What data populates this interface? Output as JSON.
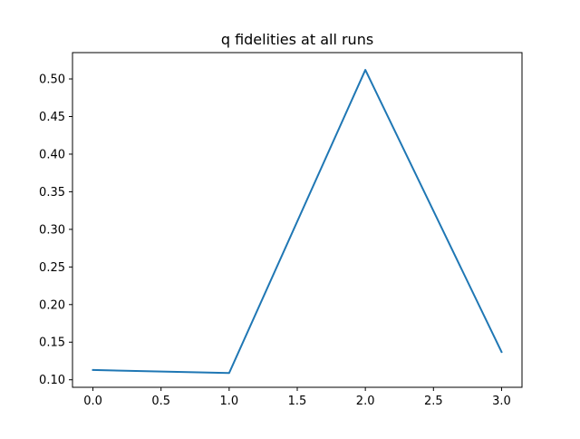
{
  "chart_data": {
    "type": "line",
    "title": "q fidelities at all runs",
    "xlabel": "",
    "ylabel": "",
    "x": [
      0,
      1,
      2,
      3
    ],
    "series": [
      {
        "values": [
          0.113,
          0.109,
          0.512,
          0.137
        ],
        "color": "#1f77b4"
      }
    ],
    "xlim": [
      -0.15,
      3.15
    ],
    "ylim": [
      0.09,
      0.535
    ],
    "xticks": [
      "0.0",
      "0.5",
      "1.0",
      "1.5",
      "2.0",
      "2.5",
      "3.0"
    ],
    "yticks": [
      "0.10",
      "0.15",
      "0.20",
      "0.25",
      "0.30",
      "0.35",
      "0.40",
      "0.45",
      "0.50"
    ],
    "grid": false,
    "legend": "none"
  }
}
